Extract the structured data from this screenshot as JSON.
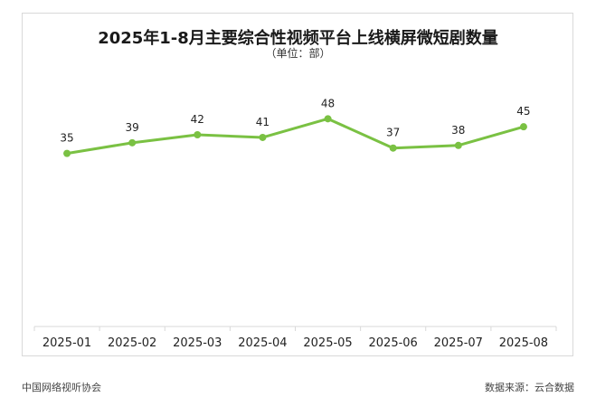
{
  "title": "2025年1-8月主要综合性视频平台上线横屏微短剧数量",
  "subtitle": "（单位：部）",
  "footer": {
    "left": "中国网络视听协会",
    "right": "数据来源：云合数据"
  },
  "chart_data": {
    "type": "line",
    "title": "2025年1-8月主要综合性视频平台上线横屏微短剧数量",
    "subtitle": "（单位：部）",
    "categories": [
      "2025-01",
      "2025-02",
      "2025-03",
      "2025-04",
      "2025-05",
      "2025-06",
      "2025-07",
      "2025-08"
    ],
    "series": [
      {
        "values": [
          35,
          39,
          42,
          41,
          48,
          37,
          38,
          45
        ]
      }
    ],
    "xlabel": "",
    "ylabel": "",
    "ylim": [
      -30,
      60
    ],
    "grid": false,
    "data_labels": true,
    "color": "#7ac143"
  }
}
